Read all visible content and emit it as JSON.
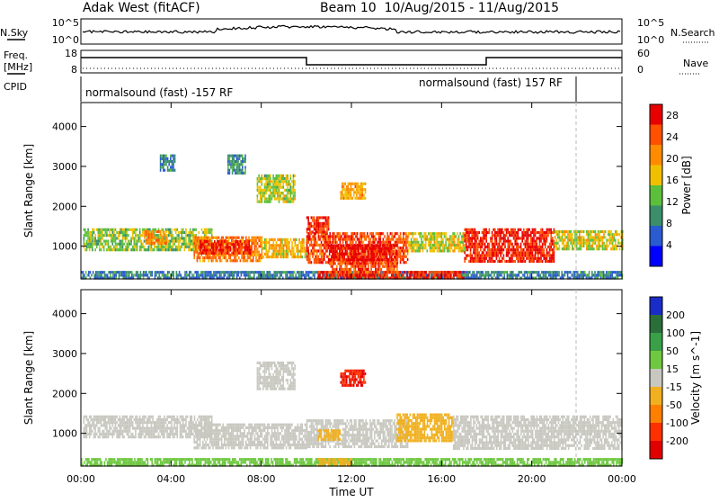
{
  "header": {
    "station": "Adak West (fitACF)",
    "beam_range": "Beam 10  10/Aug/2015 - 11/Aug/2015"
  },
  "strips": {
    "nsky": {
      "label": "N.Sky",
      "ticks": [
        "10^5",
        "10^0"
      ],
      "right_label": "N.Search",
      "right_ticks": [
        "10^5",
        "10^0"
      ]
    },
    "freq": {
      "label_line1": "Freq.",
      "label_line2": "[MHz]",
      "ticks": [
        "18",
        "8"
      ],
      "right_label": "Nave",
      "right_ticks": [
        "60",
        "0"
      ]
    },
    "cpid": {
      "label": "CPID",
      "segments": [
        "normalsound (fast) -157 RF",
        "normalsound (fast) 157 RF"
      ]
    }
  },
  "chart_data": [
    {
      "type": "heatmap",
      "panel": "power",
      "xlabel": "",
      "ylabel": "Slant Range [km]",
      "x_ticks": [
        "00:00",
        "04:00",
        "08:00",
        "12:00",
        "16:00",
        "20:00",
        "00:00"
      ],
      "x_hours": [
        0,
        4,
        8,
        12,
        16,
        20,
        24
      ],
      "xlim_hours": [
        0,
        24
      ],
      "y_ticks": [
        1000,
        2000,
        3000,
        4000
      ],
      "ylim": [
        180,
        4600
      ],
      "colorbar_label": "Power [dB]",
      "colorbar_ticks": [
        4,
        8,
        12,
        16,
        20,
        24,
        28
      ],
      "colorbar_range": [
        0,
        30
      ],
      "colorbar_colors": [
        "#0000ff",
        "#2a5bd0",
        "#3a8f6a",
        "#5cbf3c",
        "#f0c000",
        "#ff8c00",
        "#ff5000",
        "#e80000"
      ],
      "regions": [
        {
          "h0": 0.1,
          "h1": 5.8,
          "r0": 900,
          "r1": 1450,
          "v": 14
        },
        {
          "h0": 2.8,
          "h1": 3.8,
          "r0": 1050,
          "r1": 1400,
          "v": 22
        },
        {
          "h0": 5.0,
          "h1": 8.0,
          "r0": 650,
          "r1": 1250,
          "v": 22
        },
        {
          "h0": 5.2,
          "h1": 7.5,
          "r0": 850,
          "r1": 1150,
          "v": 27
        },
        {
          "h0": 8.0,
          "h1": 10.0,
          "r0": 700,
          "r1": 1200,
          "v": 18
        },
        {
          "h0": 10.0,
          "h1": 14.5,
          "r0": 600,
          "r1": 1350,
          "v": 25
        },
        {
          "h0": 11.0,
          "h1": 14.0,
          "r0": 650,
          "r1": 1050,
          "v": 29
        },
        {
          "h0": 10.0,
          "h1": 11.0,
          "r0": 1350,
          "r1": 1750,
          "v": 27
        },
        {
          "h0": 14.5,
          "h1": 17.0,
          "r0": 900,
          "r1": 1350,
          "v": 16
        },
        {
          "h0": 17.0,
          "h1": 21.0,
          "r0": 650,
          "r1": 1450,
          "v": 27
        },
        {
          "h0": 21.0,
          "h1": 24.0,
          "r0": 900,
          "r1": 1400,
          "v": 16
        },
        {
          "h0": 7.8,
          "h1": 9.5,
          "r0": 2150,
          "r1": 2800,
          "v": 15
        },
        {
          "h0": 11.5,
          "h1": 12.6,
          "r0": 2200,
          "r1": 2600,
          "v": 19
        },
        {
          "h0": 6.5,
          "h1": 7.3,
          "r0": 2800,
          "r1": 3300,
          "v": 9
        },
        {
          "h0": 3.5,
          "h1": 4.2,
          "r0": 2900,
          "r1": 3300,
          "v": 8
        },
        {
          "h0": 0.0,
          "h1": 24.0,
          "r0": 200,
          "r1": 380,
          "v": 8
        },
        {
          "h0": 10.5,
          "h1": 17.0,
          "r0": 200,
          "r1": 380,
          "v": 27
        },
        {
          "h0": 11.0,
          "h1": 14.0,
          "r0": 380,
          "r1": 600,
          "v": 25
        }
      ]
    },
    {
      "type": "heatmap",
      "panel": "velocity",
      "xlabel": "Time UT",
      "ylabel": "Slant Range [km]",
      "x_ticks": [
        "00:00",
        "04:00",
        "08:00",
        "12:00",
        "16:00",
        "20:00",
        "00:00"
      ],
      "x_hours": [
        0,
        4,
        8,
        12,
        16,
        20,
        24
      ],
      "xlim_hours": [
        0,
        24
      ],
      "y_ticks": [
        1000,
        2000,
        3000,
        4000
      ],
      "ylim": [
        180,
        4600
      ],
      "colorbar_label": "Velocity [m s^-1]",
      "colorbar_ticks": [
        "200",
        "100",
        "50",
        "15",
        "-15",
        "-50",
        "-100",
        "-200"
      ],
      "colorbar_values": [
        200,
        100,
        50,
        15,
        -15,
        -50,
        -100,
        -200
      ],
      "colorbar_colors": [
        "#1a2cc8",
        "#2a6e3a",
        "#3aa048",
        "#6ec840",
        "#c8c8c0",
        "#f0b020",
        "#ff8000",
        "#ff3000",
        "#e00000"
      ],
      "regions": [
        {
          "h0": 0.1,
          "h1": 5.8,
          "r0": 900,
          "r1": 1450,
          "v": 0
        },
        {
          "h0": 5.0,
          "h1": 10.0,
          "r0": 650,
          "r1": 1250,
          "v": 0
        },
        {
          "h0": 10.0,
          "h1": 14.5,
          "r0": 650,
          "r1": 1350,
          "v": 0
        },
        {
          "h0": 14.0,
          "h1": 16.5,
          "r0": 850,
          "r1": 1500,
          "v": -40
        },
        {
          "h0": 16.5,
          "h1": 24.0,
          "r0": 650,
          "r1": 1450,
          "v": 0
        },
        {
          "h0": 11.5,
          "h1": 12.6,
          "r0": 2200,
          "r1": 2600,
          "v": -200
        },
        {
          "h0": 7.8,
          "h1": 9.5,
          "r0": 2100,
          "r1": 2800,
          "v": 0
        },
        {
          "h0": 10.5,
          "h1": 11.5,
          "r0": 850,
          "r1": 1100,
          "v": -40
        },
        {
          "h0": 0.0,
          "h1": 24.0,
          "r0": 200,
          "r1": 380,
          "v": 25
        },
        {
          "h0": 10.5,
          "h1": 12.0,
          "r0": 200,
          "r1": 380,
          "v": -40
        }
      ]
    }
  ]
}
